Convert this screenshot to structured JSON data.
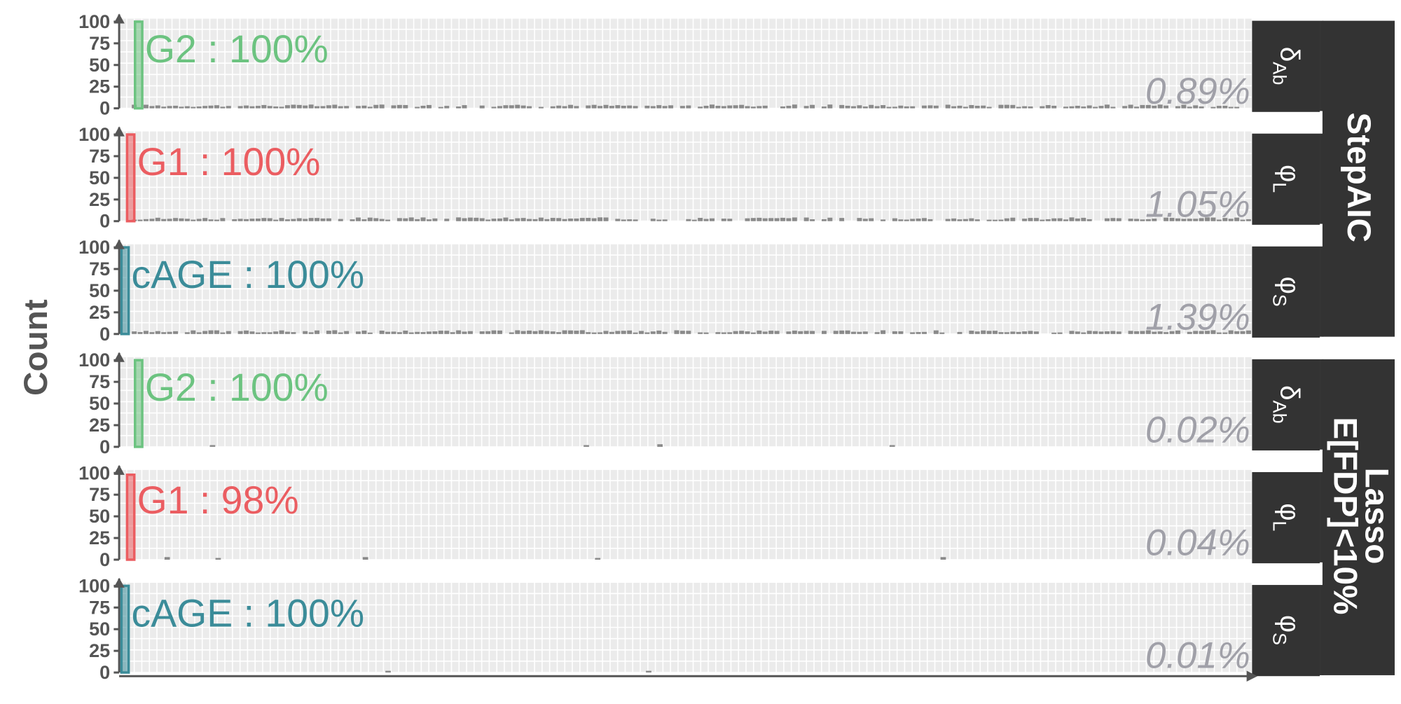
{
  "chart_data": {
    "type": "bar",
    "ylabel": "Count",
    "xlabel": "",
    "y_ticks": [
      "0",
      "25",
      "50",
      "75",
      "100"
    ],
    "ylim": [
      0,
      100
    ],
    "grid": true,
    "colors": {
      "G2": "#6cc380",
      "G1": "#eb5d61",
      "cAGE": "#3b8c99",
      "background_bars": "#8a8a8a",
      "strip": "#333333",
      "percent_text": "#a0a0a8",
      "panel_bg": "#ebebeb"
    },
    "groups": [
      {
        "label": "StepAIC"
      },
      {
        "label": "Lasso\nE[FDP]<10%"
      }
    ],
    "panels": [
      {
        "group": 0,
        "strip": "δAb",
        "highlight": "G2",
        "label": "G2 : 100%",
        "value": 100,
        "percent": "0.89%",
        "bar_pos": 0.014
      },
      {
        "group": 0,
        "strip": "φL",
        "highlight": "G1",
        "label": "G1 : 100%",
        "value": 100,
        "percent": "1.05%",
        "bar_pos": 0.007
      },
      {
        "group": 0,
        "strip": "φS",
        "highlight": "cAGE",
        "label": "cAGE : 100%",
        "value": 100,
        "percent": "1.39%",
        "bar_pos": 0.002
      },
      {
        "group": 1,
        "strip": "δAb",
        "highlight": "G2",
        "label": "G2 : 100%",
        "value": 100,
        "percent": "0.02%",
        "bar_pos": 0.014,
        "sparse": [
          [
            0.08,
            2
          ],
          [
            0.41,
            2
          ],
          [
            0.475,
            3
          ],
          [
            0.68,
            2
          ]
        ]
      },
      {
        "group": 1,
        "strip": "φL",
        "highlight": "G1",
        "label": "G1 : 98%",
        "value": 98,
        "percent": "0.04%",
        "bar_pos": 0.007,
        "sparse": [
          [
            0.04,
            3
          ],
          [
            0.085,
            2
          ],
          [
            0.215,
            3
          ],
          [
            0.42,
            2
          ],
          [
            0.725,
            3
          ]
        ]
      },
      {
        "group": 1,
        "strip": "φS",
        "highlight": "cAGE",
        "label": "cAGE : 100%",
        "value": 100,
        "percent": "0.01%",
        "bar_pos": 0.002,
        "sparse": [
          [
            0.235,
            2
          ],
          [
            0.465,
            2
          ]
        ]
      }
    ]
  }
}
